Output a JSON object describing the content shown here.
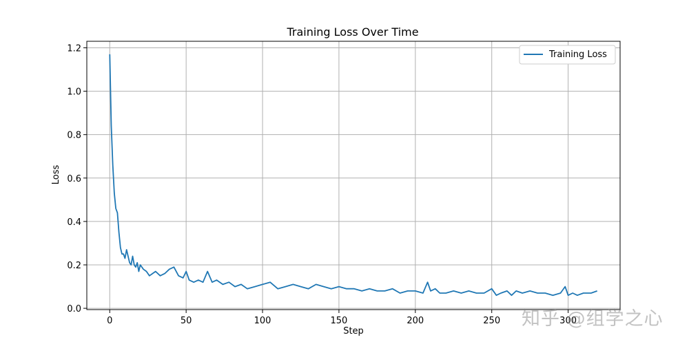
{
  "watermark": "知乎 @组学之心",
  "colors": {
    "line": "#1f77b4",
    "grid": "#b0b0b0",
    "axis": "#000000"
  },
  "chart_data": {
    "type": "line",
    "title": "Training Loss Over Time",
    "xlabel": "Step",
    "ylabel": "Loss",
    "xlim": [
      -15,
      334
    ],
    "ylim": [
      -0.006,
      1.23
    ],
    "xticks": [
      0,
      50,
      100,
      150,
      200,
      250,
      300
    ],
    "yticks": [
      0.0,
      0.2,
      0.4,
      0.6,
      0.8,
      1.0,
      1.2
    ],
    "xtick_labels": [
      "0",
      "50",
      "100",
      "150",
      "200",
      "250",
      "300"
    ],
    "ytick_labels": [
      "0.0",
      "0.2",
      "0.4",
      "0.6",
      "0.8",
      "1.0",
      "1.2"
    ],
    "grid": true,
    "legend": {
      "position": "top-right",
      "entries": [
        "Training Loss"
      ]
    },
    "series": [
      {
        "name": "Training Loss",
        "x": [
          0,
          1,
          2,
          3,
          4,
          5,
          6,
          7,
          8,
          9,
          10,
          11,
          12,
          13,
          14,
          15,
          16,
          17,
          18,
          19,
          20,
          22,
          24,
          26,
          28,
          30,
          33,
          36,
          39,
          42,
          45,
          48,
          50,
          52,
          55,
          58,
          61,
          64,
          67,
          70,
          74,
          78,
          82,
          86,
          90,
          95,
          100,
          105,
          110,
          115,
          120,
          125,
          130,
          135,
          140,
          145,
          150,
          155,
          160,
          165,
          170,
          175,
          180,
          185,
          190,
          195,
          200,
          205,
          208,
          210,
          213,
          216,
          220,
          225,
          230,
          235,
          240,
          245,
          250,
          253,
          256,
          260,
          263,
          266,
          270,
          275,
          280,
          285,
          290,
          295,
          298,
          300,
          303,
          306,
          310,
          315,
          319
        ],
        "values": [
          1.17,
          0.84,
          0.66,
          0.53,
          0.46,
          0.44,
          0.35,
          0.28,
          0.25,
          0.25,
          0.23,
          0.27,
          0.24,
          0.21,
          0.2,
          0.24,
          0.2,
          0.19,
          0.21,
          0.17,
          0.2,
          0.18,
          0.17,
          0.15,
          0.16,
          0.17,
          0.15,
          0.16,
          0.18,
          0.19,
          0.15,
          0.14,
          0.17,
          0.13,
          0.12,
          0.13,
          0.12,
          0.17,
          0.12,
          0.13,
          0.11,
          0.12,
          0.1,
          0.11,
          0.09,
          0.1,
          0.11,
          0.12,
          0.09,
          0.1,
          0.11,
          0.1,
          0.09,
          0.11,
          0.1,
          0.09,
          0.1,
          0.09,
          0.09,
          0.08,
          0.09,
          0.08,
          0.08,
          0.09,
          0.07,
          0.08,
          0.08,
          0.07,
          0.12,
          0.08,
          0.09,
          0.07,
          0.07,
          0.08,
          0.07,
          0.08,
          0.07,
          0.07,
          0.09,
          0.06,
          0.07,
          0.08,
          0.06,
          0.08,
          0.07,
          0.08,
          0.07,
          0.07,
          0.06,
          0.07,
          0.1,
          0.06,
          0.07,
          0.06,
          0.07,
          0.07,
          0.08
        ]
      }
    ]
  }
}
